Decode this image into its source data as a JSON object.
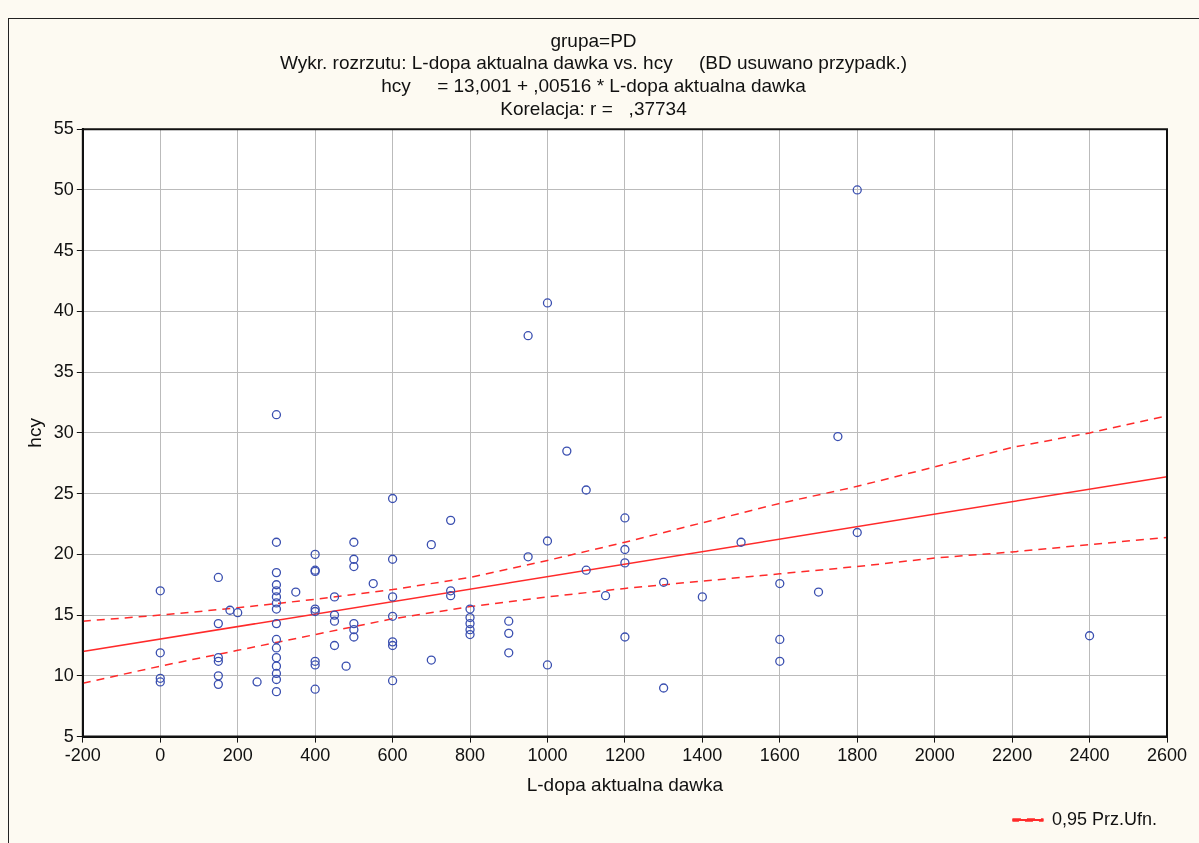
{
  "chart_data": {
    "type": "scatter",
    "title": "grupa=PD",
    "subtitle": "Wykr. rozrzutu: L-dopa aktualna dawka vs. hcy     (BD usuwano przypadk.)",
    "annotations": [
      "hcy     = 13,001 + ,00516 * L-dopa aktualna dawka",
      "Korelacja: r =   ,37734"
    ],
    "xlabel": "L-dopa aktualna dawka",
    "ylabel": "hcy",
    "xlim": [
      -200,
      2600
    ],
    "xticks": [
      -200,
      0,
      200,
      400,
      600,
      800,
      1000,
      1200,
      1400,
      1600,
      1800,
      2000,
      2200,
      2400,
      2600
    ],
    "ylim": [
      5,
      55
    ],
    "yticks": [
      5,
      10,
      15,
      20,
      25,
      30,
      35,
      40,
      45,
      50,
      55
    ],
    "grid": true,
    "legend": "bottom right",
    "marker": "circle",
    "series": [
      {
        "color": "#3a4fb0",
        "x": [
          0,
          0,
          0,
          0,
          150,
          150,
          150,
          150,
          150,
          150,
          180,
          200,
          250,
          300,
          300,
          300,
          300,
          300,
          300,
          300,
          300,
          300,
          300,
          300,
          300,
          300,
          300,
          300,
          300,
          350,
          400,
          400,
          400,
          400,
          400,
          400,
          400,
          400,
          450,
          450,
          450,
          450,
          480,
          500,
          500,
          500,
          500,
          500,
          500,
          550,
          600,
          600,
          600,
          600,
          600,
          600,
          600,
          700,
          700,
          750,
          750,
          750,
          800,
          800,
          800,
          800,
          800,
          900,
          900,
          900,
          950,
          950,
          1000,
          1000,
          1000,
          1050,
          1100,
          1100,
          1150,
          1200,
          1200,
          1200,
          1200,
          1300,
          1300,
          1400,
          1500,
          1600,
          1600,
          1600,
          1700,
          1750,
          1800,
          1800,
          2400
        ],
        "values": [
          17.0,
          11.9,
          9.8,
          9.5,
          18.1,
          14.3,
          11.5,
          11.2,
          10.0,
          9.3,
          15.4,
          15.2,
          9.5,
          31.5,
          21.0,
          18.5,
          17.5,
          17.0,
          16.5,
          16.0,
          15.5,
          14.3,
          13.0,
          12.3,
          11.5,
          10.8,
          10.2,
          9.7,
          8.7,
          16.9,
          20.0,
          18.7,
          18.6,
          15.5,
          15.3,
          11.2,
          10.9,
          8.9,
          16.5,
          15.0,
          14.5,
          12.5,
          10.8,
          21.0,
          19.6,
          19.0,
          14.3,
          13.8,
          13.2,
          17.6,
          24.6,
          19.6,
          16.5,
          14.9,
          12.8,
          12.5,
          9.6,
          20.8,
          11.3,
          22.8,
          17.0,
          16.6,
          15.5,
          14.8,
          14.3,
          13.8,
          13.4,
          14.5,
          13.5,
          11.9,
          38.0,
          19.8,
          40.7,
          21.1,
          10.9,
          28.5,
          25.3,
          18.7,
          16.6,
          23.0,
          20.4,
          19.3,
          13.2,
          17.7,
          9.0,
          16.5,
          21.0,
          17.6,
          13.0,
          11.2,
          16.9,
          29.7,
          50.0,
          21.8,
          13.3
        ]
      },
      {
        "type": "line",
        "color": "#ff2a2a",
        "marker": "none",
        "line_style": "solid",
        "x": [
          -200,
          2600
        ],
        "values": [
          12.0,
          26.4
        ]
      },
      {
        "type": "line",
        "name": "0,95 Prz.Ufn.",
        "color": "#ff2a2a",
        "marker": "none",
        "line_style": "dashed",
        "x": [
          -200,
          0,
          200,
          400,
          600,
          800,
          1000,
          1200,
          1400,
          1600,
          1800,
          2000,
          2200,
          2400,
          2600
        ],
        "values": [
          14.5,
          15.0,
          15.6,
          16.3,
          17.1,
          18.1,
          19.5,
          21.0,
          22.6,
          24.2,
          25.6,
          27.2,
          28.8,
          30.0,
          31.4
        ]
      },
      {
        "type": "line",
        "color": "#ff2a2a",
        "marker": "none",
        "line_style": "dashed",
        "x": [
          -200,
          0,
          200,
          400,
          600,
          800,
          1000,
          1200,
          1400,
          1600,
          1800,
          2000,
          2200,
          2400,
          2600
        ],
        "values": [
          9.4,
          10.8,
          12.1,
          13.4,
          14.7,
          15.7,
          16.5,
          17.2,
          17.8,
          18.4,
          19.0,
          19.7,
          20.2,
          20.8,
          21.4
        ]
      }
    ]
  }
}
